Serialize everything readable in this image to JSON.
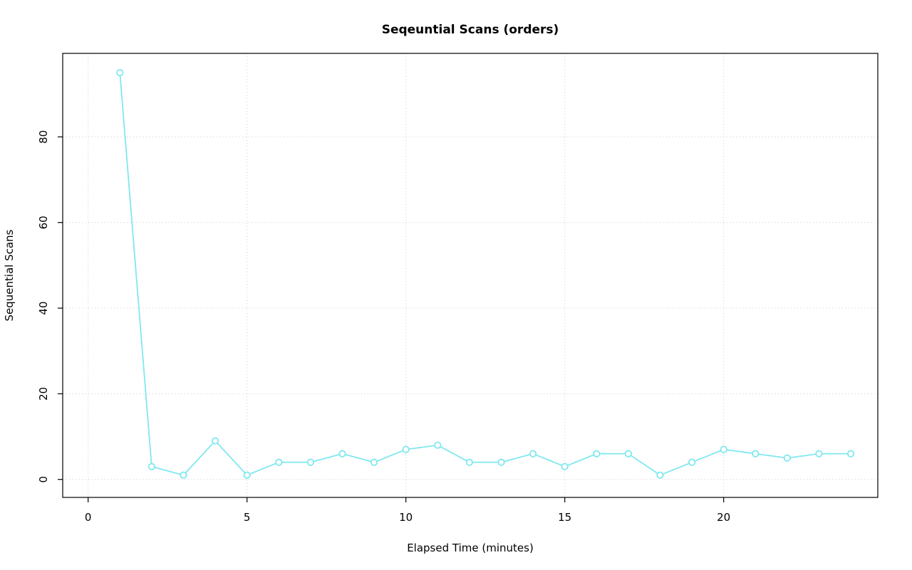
{
  "chart_data": {
    "type": "line",
    "title": "Seqeuntial Scans (orders)",
    "xlabel": "Elapsed Time (minutes)",
    "ylabel": "Sequential Scans",
    "x": [
      1,
      2,
      3,
      4,
      5,
      6,
      7,
      8,
      9,
      10,
      11,
      12,
      13,
      14,
      15,
      16,
      17,
      18,
      19,
      20,
      21,
      22,
      23,
      24
    ],
    "series": [
      {
        "name": "sequential-scans",
        "values": [
          95,
          3,
          1,
          9,
          1,
          4,
          4,
          6,
          4,
          7,
          8,
          4,
          4,
          6,
          3,
          6,
          6,
          1,
          4,
          7,
          6,
          5,
          6,
          6
        ]
      }
    ],
    "xlim": [
      -0.8,
      24.85
    ],
    "ylim": [
      -4.2,
      99.5
    ],
    "xticks": [
      0,
      5,
      10,
      15,
      20
    ],
    "yticks": [
      0,
      20,
      40,
      60,
      80
    ],
    "grid": true,
    "legend": "none",
    "marker": "open-circle",
    "colors": {
      "series": "#7FE8EF",
      "grid": "#D9D9D9",
      "axis": "#000000",
      "background": "#FFFFFF"
    }
  }
}
